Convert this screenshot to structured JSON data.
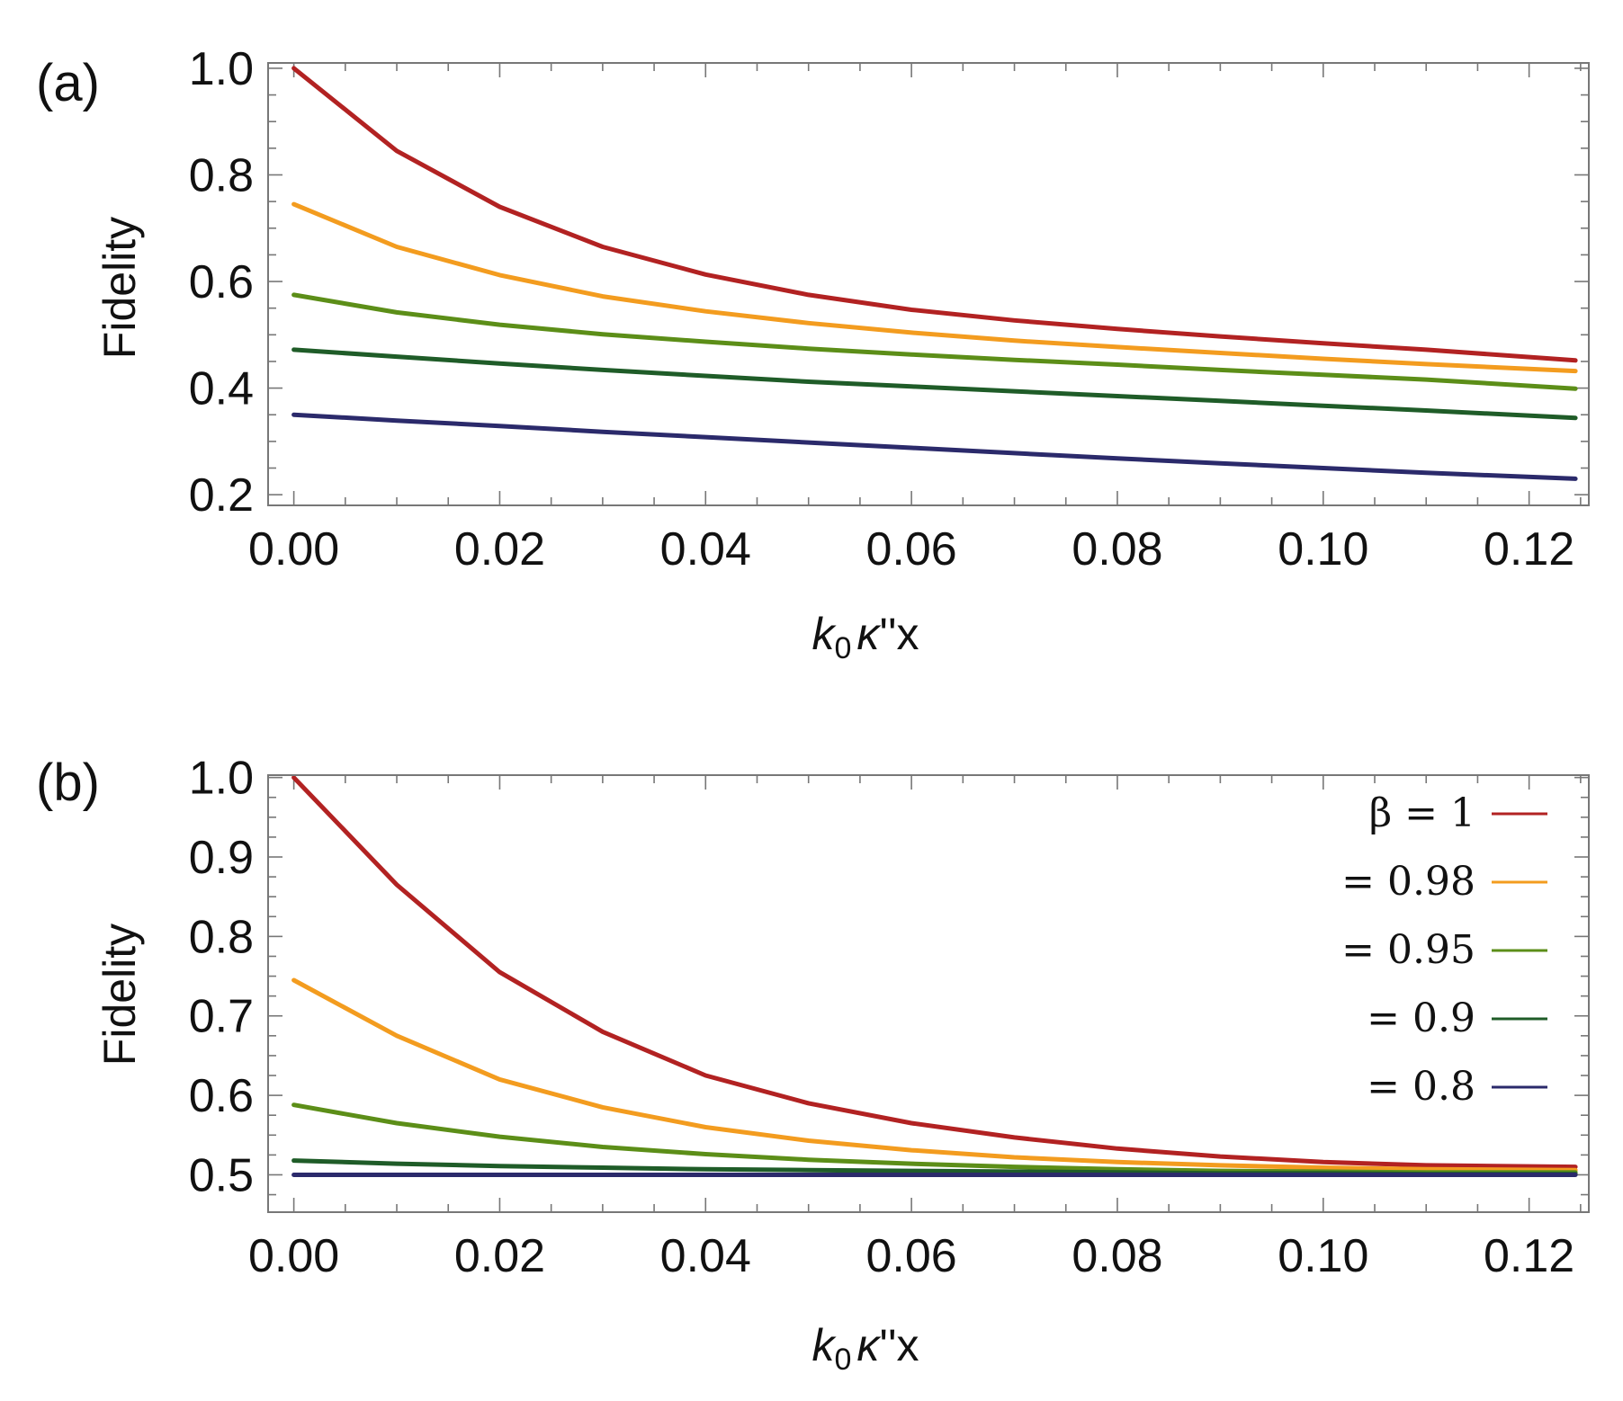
{
  "chart_data": [
    {
      "type": "line",
      "panel_label": "(a)",
      "xlabel_parts": {
        "k": "k",
        "sub": "0",
        "kappa": "κ",
        "rest": "''x"
      },
      "ylabel": "Fidelity",
      "xlim": [
        -0.0025,
        0.1258
      ],
      "ylim": [
        0.18,
        1.01
      ],
      "xticks": [
        0.0,
        0.02,
        0.04,
        0.06,
        0.08,
        0.1,
        0.12
      ],
      "xtick_labels": [
        "0.00",
        "0.02",
        "0.04",
        "0.06",
        "0.08",
        "0.10",
        "0.12"
      ],
      "yticks": [
        0.2,
        0.4,
        0.6,
        0.8,
        1.0
      ],
      "ytick_labels": [
        "0.2",
        "0.4",
        "0.6",
        "0.8",
        "1.0"
      ],
      "x": [
        0.0,
        0.01,
        0.02,
        0.03,
        0.04,
        0.05,
        0.06,
        0.07,
        0.08,
        0.09,
        0.1,
        0.11,
        0.1245
      ],
      "series": [
        {
          "name": "β=1",
          "color": "#B22222",
          "values": [
            1.0,
            0.845,
            0.74,
            0.665,
            0.613,
            0.575,
            0.547,
            0.527,
            0.511,
            0.497,
            0.484,
            0.472,
            0.452
          ]
        },
        {
          "name": "β=0.98",
          "color": "#F39C1F",
          "values": [
            0.745,
            0.665,
            0.612,
            0.572,
            0.544,
            0.522,
            0.504,
            0.489,
            0.477,
            0.466,
            0.455,
            0.445,
            0.432
          ]
        },
        {
          "name": "β=0.95",
          "color": "#5C8E18",
          "values": [
            0.575,
            0.542,
            0.519,
            0.501,
            0.487,
            0.474,
            0.463,
            0.453,
            0.444,
            0.434,
            0.425,
            0.416,
            0.399
          ]
        },
        {
          "name": "β=0.9",
          "color": "#1F5C28",
          "values": [
            0.472,
            0.459,
            0.446,
            0.434,
            0.423,
            0.412,
            0.403,
            0.394,
            0.385,
            0.376,
            0.367,
            0.358,
            0.344
          ]
        },
        {
          "name": "β=0.8",
          "color": "#2B2A6B",
          "values": [
            0.35,
            0.339,
            0.329,
            0.318,
            0.308,
            0.298,
            0.288,
            0.278,
            0.268,
            0.259,
            0.25,
            0.241,
            0.23
          ]
        }
      ]
    },
    {
      "type": "line",
      "panel_label": "(b)",
      "xlabel_parts": {
        "k": "k",
        "sub": "0",
        "kappa": "κ",
        "rest": "''x"
      },
      "ylabel": "Fidelity",
      "xlim": [
        -0.0025,
        0.1258
      ],
      "ylim": [
        0.453,
        1.003
      ],
      "xticks": [
        0.0,
        0.02,
        0.04,
        0.06,
        0.08,
        0.1,
        0.12
      ],
      "xtick_labels": [
        "0.00",
        "0.02",
        "0.04",
        "0.06",
        "0.08",
        "0.10",
        "0.12"
      ],
      "yticks": [
        0.5,
        0.6,
        0.7,
        0.8,
        0.9,
        1.0
      ],
      "ytick_labels": [
        "0.5",
        "0.6",
        "0.7",
        "0.8",
        "0.9",
        "1.0"
      ],
      "legend_position": "top-right",
      "legend": [
        {
          "label": "β = 1",
          "color": "#B22222"
        },
        {
          "label": "= 0.98",
          "color": "#F39C1F"
        },
        {
          "label": "= 0.95",
          "color": "#5C8E18"
        },
        {
          "label": "= 0.9",
          "color": "#1F5C28"
        },
        {
          "label": "= 0.8",
          "color": "#2B2A6B"
        }
      ],
      "x": [
        0.0,
        0.01,
        0.02,
        0.03,
        0.04,
        0.05,
        0.06,
        0.07,
        0.08,
        0.09,
        0.1,
        0.11,
        0.1245
      ],
      "series": [
        {
          "name": "β=1",
          "color": "#B22222",
          "values": [
            1.0,
            0.865,
            0.755,
            0.68,
            0.625,
            0.59,
            0.565,
            0.547,
            0.533,
            0.523,
            0.516,
            0.512,
            0.51
          ]
        },
        {
          "name": "β=0.98",
          "color": "#F39C1F",
          "values": [
            0.745,
            0.675,
            0.62,
            0.585,
            0.56,
            0.543,
            0.531,
            0.522,
            0.516,
            0.512,
            0.509,
            0.507,
            0.506
          ]
        },
        {
          "name": "β=0.95",
          "color": "#5C8E18",
          "values": [
            0.588,
            0.565,
            0.548,
            0.535,
            0.526,
            0.519,
            0.514,
            0.51,
            0.507,
            0.505,
            0.504,
            0.503,
            0.503
          ]
        },
        {
          "name": "β=0.9",
          "color": "#1F5C28",
          "values": [
            0.518,
            0.514,
            0.511,
            0.509,
            0.507,
            0.506,
            0.505,
            0.504,
            0.503,
            0.502,
            0.502,
            0.501,
            0.501
          ]
        },
        {
          "name": "β=0.8",
          "color": "#2B2A6B",
          "values": [
            0.5,
            0.5,
            0.5,
            0.5,
            0.5,
            0.5,
            0.5,
            0.5,
            0.5,
            0.5,
            0.5,
            0.5,
            0.5
          ]
        }
      ]
    }
  ]
}
